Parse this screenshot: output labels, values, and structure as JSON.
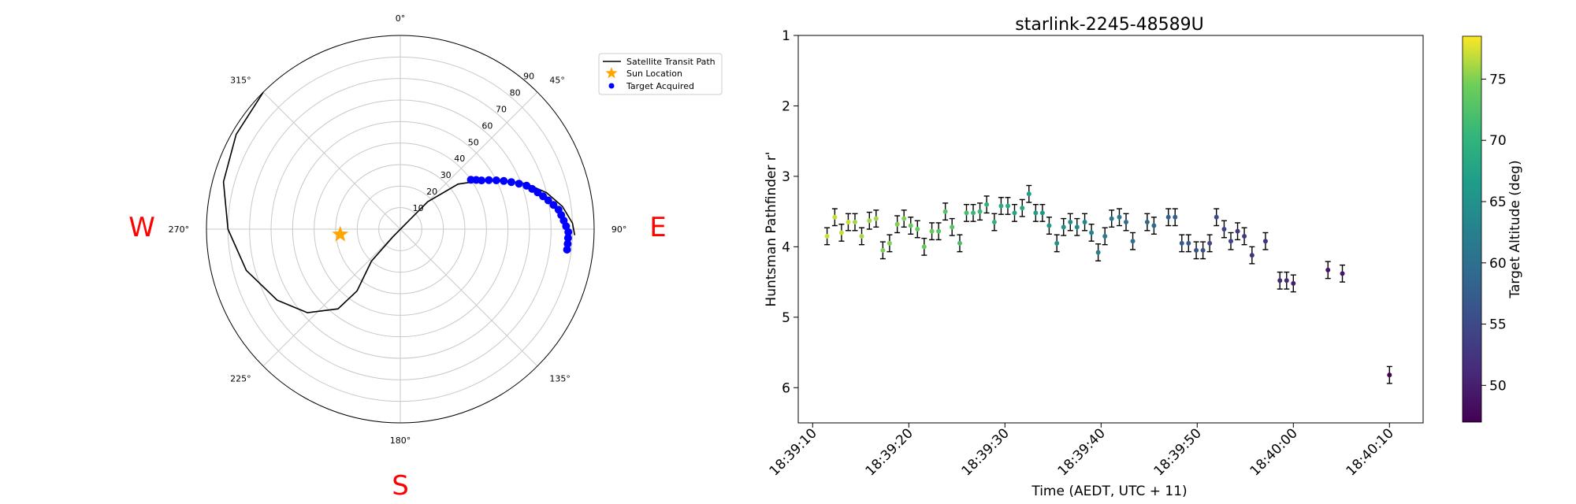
{
  "polar": {
    "compass": {
      "N": "",
      "E": "E",
      "S": "S",
      "W": "W"
    },
    "angle_labels": [
      "0°",
      "45°",
      "90°",
      "135°",
      "180°",
      "225°",
      "270°",
      "315°"
    ],
    "radial_ticks": [
      "10",
      "20",
      "30",
      "40",
      "50",
      "60",
      "70",
      "80",
      "90"
    ],
    "legend": {
      "path": "Satellite Transit Path",
      "sun": "Sun Location",
      "target": "Target Acquired"
    },
    "colors": {
      "path": "#000000",
      "sun": "#ffa500",
      "target": "#0000ff"
    }
  },
  "chart_data": [
    {
      "type": "polar",
      "radial_range": [
        0,
        90
      ],
      "theta_zero": "top",
      "theta_direction": "clockwise",
      "grid": true,
      "legend_position": "upper-right",
      "series": [
        {
          "name": "Satellite Transit Path",
          "points": [
            [
              315,
              90
            ],
            [
              300,
              88
            ],
            [
              285,
              85
            ],
            [
              270,
              80
            ],
            [
              255,
              74
            ],
            [
              240,
              66
            ],
            [
              228,
              58
            ],
            [
              218,
              47
            ],
            [
              215,
              35
            ],
            [
              222,
              20
            ],
            [
              224,
              5
            ],
            [
              45,
              7
            ],
            [
              45,
              18
            ],
            [
              52,
              34
            ],
            [
              58,
              42
            ],
            [
              64,
              52
            ],
            [
              70,
              62
            ],
            [
              76,
              70
            ],
            [
              82,
              76
            ],
            [
              88,
              80
            ],
            [
              92,
              81
            ]
          ]
        },
        {
          "name": "Sun Location",
          "points": [
            [
              265,
              28
            ]
          ]
        },
        {
          "name": "Target Acquired",
          "points": [
            [
              55,
              40
            ],
            [
              57,
              42
            ],
            [
              59,
              44
            ],
            [
              61,
              47
            ],
            [
              63,
              50
            ],
            [
              65,
              53
            ],
            [
              67,
              56
            ],
            [
              69,
              59
            ],
            [
              71,
              62
            ],
            [
              73,
              64
            ],
            [
              75,
              66
            ],
            [
              77,
              68
            ],
            [
              79,
              70
            ],
            [
              81,
              72
            ],
            [
              83,
              74
            ],
            [
              85,
              75
            ],
            [
              87,
              76
            ],
            [
              89,
              77
            ],
            [
              91,
              78
            ],
            [
              93,
              78
            ],
            [
              95,
              78
            ],
            [
              97,
              78
            ]
          ]
        }
      ]
    },
    {
      "type": "scatter",
      "title": "starlink-2245-48589U",
      "xlabel": "Time (AEDT, UTC + 11)",
      "ylabel": "Huntsman Pathfinder r'",
      "x_ticks": [
        "18:39:10",
        "18:39:20",
        "18:39:30",
        "18:39:40",
        "18:39:50",
        "18:40:00",
        "18:40:10"
      ],
      "y_ticks": [
        "1",
        "2",
        "3",
        "4",
        "5",
        "6"
      ],
      "y_inverted": true,
      "ylim": [
        6.5,
        1
      ],
      "xlim": [
        "18:39:08.5",
        "18:40:13.5"
      ],
      "error_bars": true,
      "colorbar": {
        "label": "Target Altitude (deg)",
        "ticks": [
          "50",
          "55",
          "60",
          "65",
          "70",
          "75"
        ],
        "range": [
          47,
          78.5
        ],
        "colormap": "viridis"
      },
      "points": [
        {
          "t": "18:39:11.5",
          "y": 3.85,
          "err": 0.12,
          "alt": 77
        },
        {
          "t": "18:39:12.3",
          "y": 3.58,
          "err": 0.12,
          "alt": 77
        },
        {
          "t": "18:39:13.0",
          "y": 3.8,
          "err": 0.12,
          "alt": 77
        },
        {
          "t": "18:39:13.7",
          "y": 3.65,
          "err": 0.12,
          "alt": 77
        },
        {
          "t": "18:39:14.4",
          "y": 3.65,
          "err": 0.12,
          "alt": 76
        },
        {
          "t": "18:39:15.1",
          "y": 3.85,
          "err": 0.12,
          "alt": 76
        },
        {
          "t": "18:39:15.9",
          "y": 3.63,
          "err": 0.12,
          "alt": 76
        },
        {
          "t": "18:39:16.6",
          "y": 3.6,
          "err": 0.12,
          "alt": 76
        },
        {
          "t": "18:39:17.3",
          "y": 4.05,
          "err": 0.12,
          "alt": 75
        },
        {
          "t": "18:39:18.0",
          "y": 3.95,
          "err": 0.12,
          "alt": 75
        },
        {
          "t": "18:39:18.8",
          "y": 3.68,
          "err": 0.12,
          "alt": 75
        },
        {
          "t": "18:39:19.5",
          "y": 3.6,
          "err": 0.12,
          "alt": 75
        },
        {
          "t": "18:39:20.2",
          "y": 3.7,
          "err": 0.12,
          "alt": 74
        },
        {
          "t": "18:39:20.9",
          "y": 3.75,
          "err": 0.12,
          "alt": 74
        },
        {
          "t": "18:39:21.6",
          "y": 4.0,
          "err": 0.12,
          "alt": 74
        },
        {
          "t": "18:39:22.4",
          "y": 3.78,
          "err": 0.12,
          "alt": 74
        },
        {
          "t": "18:39:23.1",
          "y": 3.78,
          "err": 0.12,
          "alt": 73
        },
        {
          "t": "18:39:23.8",
          "y": 3.5,
          "err": 0.12,
          "alt": 73
        },
        {
          "t": "18:39:24.5",
          "y": 3.72,
          "err": 0.12,
          "alt": 73
        },
        {
          "t": "18:39:25.3",
          "y": 3.95,
          "err": 0.12,
          "alt": 72
        },
        {
          "t": "18:39:26.0",
          "y": 3.52,
          "err": 0.12,
          "alt": 72
        },
        {
          "t": "18:39:26.7",
          "y": 3.52,
          "err": 0.12,
          "alt": 71
        },
        {
          "t": "18:39:27.4",
          "y": 3.5,
          "err": 0.12,
          "alt": 71
        },
        {
          "t": "18:39:28.1",
          "y": 3.4,
          "err": 0.12,
          "alt": 70
        },
        {
          "t": "18:39:28.9",
          "y": 3.65,
          "err": 0.12,
          "alt": 70
        },
        {
          "t": "18:39:29.6",
          "y": 3.42,
          "err": 0.12,
          "alt": 69
        },
        {
          "t": "18:39:30.3",
          "y": 3.42,
          "err": 0.12,
          "alt": 69
        },
        {
          "t": "18:39:31.0",
          "y": 3.52,
          "err": 0.12,
          "alt": 68
        },
        {
          "t": "18:39:31.8",
          "y": 3.45,
          "err": 0.12,
          "alt": 68
        },
        {
          "t": "18:39:32.5",
          "y": 3.25,
          "err": 0.12,
          "alt": 67
        },
        {
          "t": "18:39:33.2",
          "y": 3.52,
          "err": 0.12,
          "alt": 67
        },
        {
          "t": "18:39:33.9",
          "y": 3.52,
          "err": 0.12,
          "alt": 66
        },
        {
          "t": "18:39:34.6",
          "y": 3.7,
          "err": 0.12,
          "alt": 66
        },
        {
          "t": "18:39:35.4",
          "y": 3.95,
          "err": 0.12,
          "alt": 65
        },
        {
          "t": "18:39:36.1",
          "y": 3.72,
          "err": 0.12,
          "alt": 65
        },
        {
          "t": "18:39:36.8",
          "y": 3.65,
          "err": 0.12,
          "alt": 64
        },
        {
          "t": "18:39:37.5",
          "y": 3.72,
          "err": 0.12,
          "alt": 64
        },
        {
          "t": "18:39:38.3",
          "y": 3.65,
          "err": 0.12,
          "alt": 63
        },
        {
          "t": "18:39:39.0",
          "y": 3.8,
          "err": 0.12,
          "alt": 63
        },
        {
          "t": "18:39:39.7",
          "y": 4.08,
          "err": 0.12,
          "alt": 62
        },
        {
          "t": "18:39:40.4",
          "y": 3.85,
          "err": 0.12,
          "alt": 62
        },
        {
          "t": "18:39:41.1",
          "y": 3.6,
          "err": 0.12,
          "alt": 61
        },
        {
          "t": "18:39:41.9",
          "y": 3.58,
          "err": 0.12,
          "alt": 61
        },
        {
          "t": "18:39:42.6",
          "y": 3.65,
          "err": 0.12,
          "alt": 60
        },
        {
          "t": "18:39:43.3",
          "y": 3.92,
          "err": 0.12,
          "alt": 60
        },
        {
          "t": "18:39:44.8",
          "y": 3.65,
          "err": 0.12,
          "alt": 59
        },
        {
          "t": "18:39:45.5",
          "y": 3.7,
          "err": 0.12,
          "alt": 59
        },
        {
          "t": "18:39:47.0",
          "y": 3.58,
          "err": 0.12,
          "alt": 58
        },
        {
          "t": "18:39:47.7",
          "y": 3.58,
          "err": 0.12,
          "alt": 58
        },
        {
          "t": "18:39:48.4",
          "y": 3.95,
          "err": 0.12,
          "alt": 57
        },
        {
          "t": "18:39:49.1",
          "y": 3.95,
          "err": 0.12,
          "alt": 57
        },
        {
          "t": "18:39:49.9",
          "y": 4.05,
          "err": 0.12,
          "alt": 56
        },
        {
          "t": "18:39:50.6",
          "y": 4.05,
          "err": 0.12,
          "alt": 56
        },
        {
          "t": "18:39:51.3",
          "y": 3.95,
          "err": 0.12,
          "alt": 55
        },
        {
          "t": "18:39:52.0",
          "y": 3.58,
          "err": 0.12,
          "alt": 55
        },
        {
          "t": "18:39:52.8",
          "y": 3.75,
          "err": 0.12,
          "alt": 54
        },
        {
          "t": "18:39:53.5",
          "y": 3.92,
          "err": 0.12,
          "alt": 54
        },
        {
          "t": "18:39:54.2",
          "y": 3.78,
          "err": 0.12,
          "alt": 53
        },
        {
          "t": "18:39:54.9",
          "y": 3.85,
          "err": 0.12,
          "alt": 53
        },
        {
          "t": "18:39:55.7",
          "y": 4.12,
          "err": 0.12,
          "alt": 52
        },
        {
          "t": "18:39:57.1",
          "y": 3.92,
          "err": 0.12,
          "alt": 52
        },
        {
          "t": "18:39:58.6",
          "y": 4.48,
          "err": 0.12,
          "alt": 51
        },
        {
          "t": "18:39:59.3",
          "y": 4.48,
          "err": 0.12,
          "alt": 51
        },
        {
          "t": "18:40:00.0",
          "y": 4.52,
          "err": 0.12,
          "alt": 50
        },
        {
          "t": "18:40:03.6",
          "y": 4.33,
          "err": 0.12,
          "alt": 49
        },
        {
          "t": "18:40:05.1",
          "y": 4.38,
          "err": 0.12,
          "alt": 49
        },
        {
          "t": "18:40:10.0",
          "y": 5.82,
          "err": 0.12,
          "alt": 47
        }
      ]
    }
  ]
}
